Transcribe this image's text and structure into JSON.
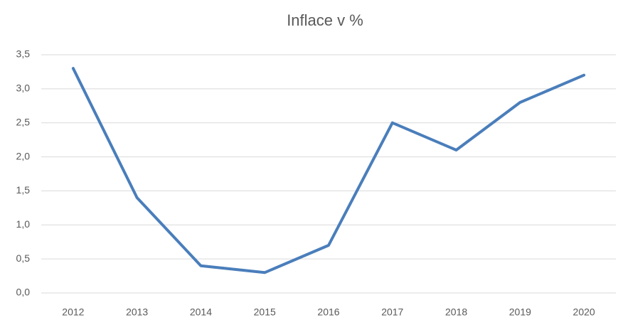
{
  "chart_data": {
    "type": "line",
    "title": "Inflace v %",
    "categories": [
      "2012",
      "2013",
      "2014",
      "2015",
      "2016",
      "2017",
      "2018",
      "2019",
      "2020"
    ],
    "values": [
      3.3,
      1.4,
      0.4,
      0.3,
      0.7,
      2.5,
      2.1,
      2.8,
      3.2
    ],
    "color": "#4a7ebb",
    "ylim": [
      0,
      3.5
    ],
    "yticks": [
      {
        "value": 0,
        "label": "0,0"
      },
      {
        "value": 0.5,
        "label": "0,5"
      },
      {
        "value": 1,
        "label": "1,0"
      },
      {
        "value": 1.5,
        "label": "1,5"
      },
      {
        "value": 2,
        "label": "2,0"
      },
      {
        "value": 2.5,
        "label": "2,5"
      },
      {
        "value": 3,
        "label": "3,0"
      },
      {
        "value": 3.5,
        "label": "3,5"
      }
    ],
    "grid": true
  }
}
